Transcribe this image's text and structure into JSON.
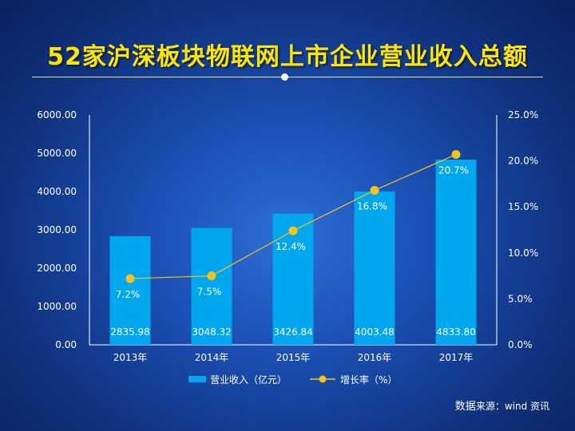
{
  "title": "52家沪深板块物联网上市企业营业收入总额",
  "source": {
    "prefix": "数据",
    "text": "来源：wind 资讯"
  },
  "colors": {
    "bar": "#00a7ee",
    "line": "#f7c21a",
    "point": "#f7c21a",
    "title": "#ffe600"
  },
  "chart_data": {
    "type": "bar",
    "categories": [
      "2013年",
      "2014年",
      "2015年",
      "2016年",
      "2017年"
    ],
    "series": [
      {
        "name": "营业收入（亿元）",
        "type": "bar",
        "axis": "left",
        "values": [
          2835.98,
          3048.32,
          3426.84,
          4003.48,
          4833.8
        ],
        "labels": [
          "2835.98",
          "3048.32",
          "3426.84",
          "4003.48",
          "4833.80"
        ]
      },
      {
        "name": "增长率（%）",
        "type": "line",
        "axis": "right",
        "values": [
          7.2,
          7.5,
          12.4,
          16.8,
          20.7
        ],
        "labels": [
          "7.2%",
          "7.5%",
          "12.4%",
          "16.8%",
          "20.7%"
        ]
      }
    ],
    "y_left": {
      "ylim": [
        0,
        6000
      ],
      "ticks": [
        "0.00",
        "1000.00",
        "2000.00",
        "3000.00",
        "4000.00",
        "5000.00",
        "6000.00"
      ]
    },
    "y_right": {
      "ylim": [
        0,
        25
      ],
      "ticks": [
        "0.0%",
        "5.0%",
        "10.0%",
        "15.0%",
        "20.0%",
        "25.0%"
      ]
    },
    "legend_position": "bottom",
    "grid": false
  }
}
